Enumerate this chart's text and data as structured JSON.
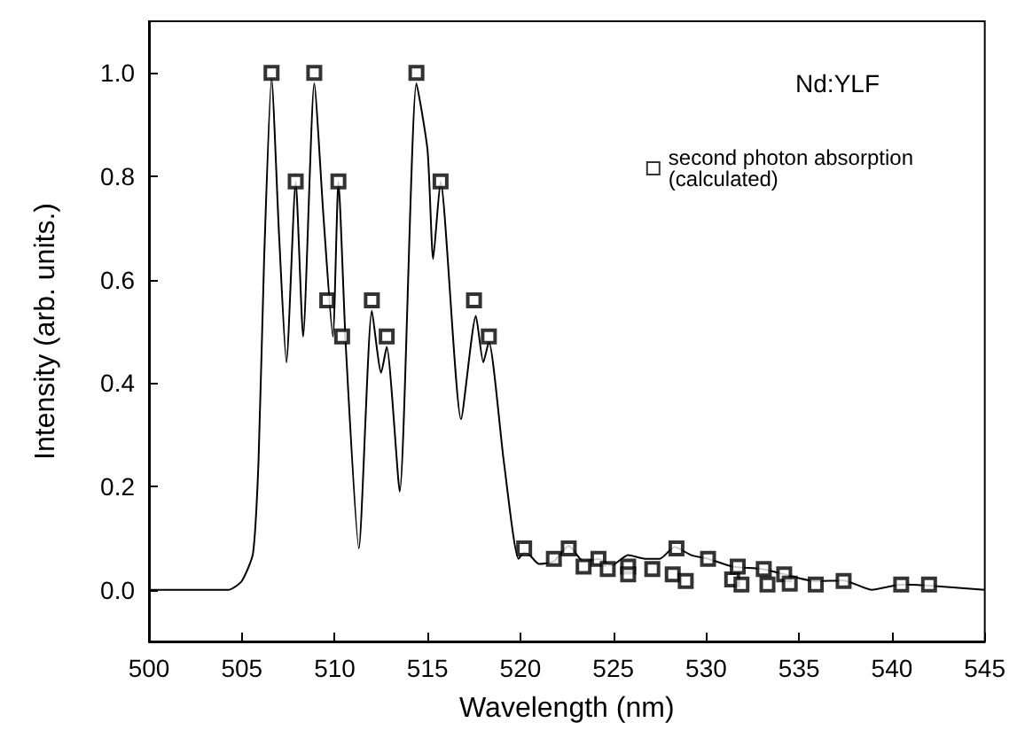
{
  "chart_data": {
    "type": "line",
    "xlabel": "Wavelength (nm)",
    "ylabel": "Intensity (arb. units.)",
    "annotations": [
      "Nd:YLF"
    ],
    "xlim": [
      500,
      545
    ],
    "xticks": [
      500,
      505,
      510,
      515,
      520,
      525,
      530,
      535,
      540,
      545
    ],
    "ylim": [
      -0.1,
      1.1
    ],
    "yticks": [
      {
        "value": 0,
        "label": "0.0"
      },
      {
        "value": 0.2,
        "label": "0.2"
      },
      {
        "value": 0.4,
        "label": "0.4"
      },
      {
        "value": 0.6,
        "label": "0.6"
      },
      {
        "value": 0.8,
        "label": "0.8"
      },
      {
        "value": 1,
        "label": "1.0"
      }
    ],
    "grid": false,
    "legend": "top right",
    "series": [
      {
        "color": "#000000",
        "marker": "none",
        "x": [
          500,
          504.3,
          505.0,
          505.6,
          505.9,
          506.2,
          506.6,
          507.0,
          507.4,
          507.9,
          508.3,
          508.9,
          509.4,
          509.9,
          510.2,
          510.6,
          511.3,
          512.0,
          512.5,
          512.8,
          513.5,
          514.4,
          515.0,
          515.3,
          515.7,
          516.8,
          517.6,
          518.0,
          518.3,
          519.1,
          519.9,
          520.2,
          520.5,
          521.0,
          521.8,
          522.6,
          523.4,
          524.2,
          524.9,
          525.8,
          526.7,
          527.5,
          528.3,
          529.2,
          530.1,
          531.4,
          533.0,
          534.2,
          535.8,
          537.4,
          538.9,
          540.5,
          542.0,
          545
        ],
        "values": [
          0,
          0,
          0.017,
          0.07,
          0.25,
          0.64,
          0.99,
          0.69,
          0.44,
          0.79,
          0.49,
          0.98,
          0.72,
          0.49,
          0.79,
          0.47,
          0.08,
          0.54,
          0.42,
          0.47,
          0.19,
          0.98,
          0.85,
          0.64,
          0.79,
          0.33,
          0.53,
          0.44,
          0.48,
          0.25,
          0.06,
          0.072,
          0.067,
          0.05,
          0.055,
          0.085,
          0.055,
          0.06,
          0.047,
          0.067,
          0.06,
          0.06,
          0.083,
          0.067,
          0.06,
          0.045,
          0.04,
          0.03,
          0.017,
          0.018,
          0,
          0.01,
          0.008,
          0
        ]
      },
      {
        "type": "scatter",
        "name": "second photon absorption\n(calculated)",
        "color": "#000000",
        "marker": "square",
        "x": [
          506.6,
          507.9,
          508.9,
          509.6,
          510.2,
          510.4,
          512.0,
          512.8,
          514.4,
          515.7,
          517.5,
          518.3,
          520.2,
          521.8,
          522.6,
          523.4,
          524.2,
          524.7,
          525.8,
          525.8,
          527.1,
          528.2,
          528.4,
          528.9,
          530.1,
          531.4,
          531.7,
          531.9,
          533.1,
          533.3,
          534.2,
          534.5,
          535.9,
          537.4,
          540.5,
          542.0
        ],
        "values": [
          1.0,
          0.79,
          1.0,
          0.56,
          0.79,
          0.49,
          0.56,
          0.49,
          1.0,
          0.79,
          0.56,
          0.49,
          0.08,
          0.06,
          0.08,
          0.045,
          0.06,
          0.04,
          0.045,
          0.03,
          0.04,
          0.03,
          0.08,
          0.017,
          0.06,
          0.02,
          0.045,
          0.01,
          0.04,
          0.01,
          0.03,
          0.012,
          0.01,
          0.017,
          0.01,
          0.01
        ]
      }
    ]
  }
}
